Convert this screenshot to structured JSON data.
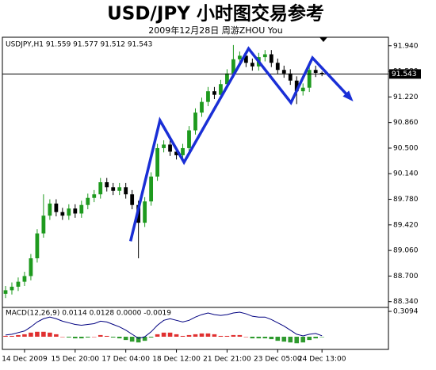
{
  "title": "USD/JPY 小时图交易参考",
  "subtitle": "2009年12月28日  周游ZHOU You",
  "chart_data": [
    {
      "type": "candlestick",
      "label": "USDJPY,H1  91.559 91.577 91.512 91.543",
      "categories": [
        null,
        null,
        null,
        "14 Dec 2009",
        null,
        null,
        null,
        null,
        null,
        null,
        null,
        "15 Dec 20:00",
        null,
        null,
        null,
        null,
        null,
        null,
        null,
        "17 Dec 04:00",
        null,
        null,
        null,
        null,
        null,
        null,
        null,
        "18 Dec 12:00",
        null,
        null,
        null,
        null,
        null,
        null,
        null,
        "21 Dec 21:00",
        null,
        null,
        null,
        null,
        null,
        null,
        null,
        "23 Dec 05:00",
        null,
        null,
        null,
        null,
        null,
        null,
        "24 Dec 13:00"
      ],
      "open": [
        88.45,
        88.5,
        88.55,
        88.62,
        88.7,
        88.95,
        89.3,
        89.55,
        89.72,
        89.6,
        89.55,
        89.65,
        89.58,
        89.7,
        89.8,
        89.85,
        90.02,
        89.95,
        89.9,
        89.95,
        89.85,
        89.7,
        89.45,
        89.75,
        90.1,
        90.5,
        90.55,
        90.45,
        90.4,
        90.5,
        90.75,
        91.0,
        91.15,
        91.3,
        91.25,
        91.4,
        91.55,
        91.75,
        91.8,
        91.7,
        91.65,
        91.78,
        91.82,
        91.7,
        91.6,
        91.55,
        91.45,
        91.3,
        91.35,
        91.6,
        91.559
      ],
      "high": [
        88.56,
        88.61,
        88.68,
        88.76,
        89.01,
        89.36,
        89.85,
        89.78,
        89.78,
        89.66,
        89.71,
        89.71,
        89.76,
        89.86,
        89.91,
        90.08,
        90.08,
        90.01,
        90.01,
        90.01,
        89.91,
        89.76,
        89.81,
        90.16,
        90.56,
        90.61,
        90.61,
        90.51,
        90.56,
        90.81,
        91.06,
        91.21,
        91.36,
        91.36,
        91.46,
        91.61,
        91.95,
        91.86,
        91.86,
        91.76,
        91.84,
        91.88,
        91.88,
        91.76,
        91.66,
        91.61,
        91.51,
        91.41,
        91.66,
        91.66,
        91.577
      ],
      "low": [
        88.39,
        88.44,
        88.49,
        88.56,
        88.64,
        88.89,
        89.24,
        89.49,
        89.54,
        89.49,
        89.49,
        89.52,
        89.52,
        89.64,
        89.74,
        89.79,
        89.89,
        89.84,
        89.84,
        89.79,
        89.64,
        88.95,
        89.39,
        89.69,
        90.04,
        90.44,
        90.39,
        90.34,
        90.34,
        90.44,
        90.69,
        90.94,
        91.09,
        91.19,
        91.19,
        91.34,
        91.49,
        91.69,
        91.64,
        91.59,
        91.59,
        91.72,
        91.64,
        91.54,
        91.49,
        91.39,
        91.12,
        91.24,
        91.29,
        91.5,
        91.512
      ],
      "close": [
        88.5,
        88.55,
        88.62,
        88.7,
        88.95,
        89.3,
        89.55,
        89.72,
        89.6,
        89.55,
        89.65,
        89.58,
        89.7,
        89.8,
        89.85,
        90.02,
        89.95,
        89.9,
        89.95,
        89.85,
        89.7,
        89.45,
        89.75,
        90.1,
        90.5,
        90.55,
        90.45,
        90.4,
        90.5,
        90.75,
        91.0,
        91.15,
        91.3,
        91.25,
        91.4,
        91.55,
        91.75,
        91.8,
        91.7,
        91.65,
        91.78,
        91.82,
        91.7,
        91.6,
        91.55,
        91.45,
        91.3,
        91.35,
        91.6,
        91.559,
        91.543
      ],
      "up_color": "#1e9a1e",
      "down_color": "#000000",
      "ylim": [
        88.27,
        92.06
      ],
      "yticks": [
        {
          "value": 91.94,
          "label": "91.940"
        },
        {
          "value": 91.58,
          "label": "91.580"
        },
        {
          "value": 91.22,
          "label": "91.220"
        },
        {
          "value": 90.86,
          "label": "90.860"
        },
        {
          "value": 90.5,
          "label": "90.500"
        },
        {
          "value": 90.14,
          "label": "90.140"
        },
        {
          "value": 89.78,
          "label": "89.780"
        },
        {
          "value": 89.42,
          "label": "89.420"
        },
        {
          "value": 89.06,
          "label": "89.060"
        },
        {
          "value": 88.7,
          "label": "88.700"
        },
        {
          "value": 88.34,
          "label": "88.340"
        }
      ],
      "last_price": 91.543,
      "annotation_line": {
        "color": "#1a2fd6",
        "x": [
          19.75,
          24.4,
          28.2,
          38.4,
          45.1,
          48.5,
          54.6
        ],
        "values": [
          89.19,
          90.89,
          90.3,
          91.9,
          91.14,
          91.77,
          91.19
        ]
      }
    },
    {
      "type": "macd",
      "label": "MACD(12,26,9) 0.0114 0.0128 0.0000 -0.0019",
      "main": [
        0.02,
        0.03,
        0.05,
        0.07,
        0.12,
        0.18,
        0.22,
        0.24,
        0.22,
        0.19,
        0.17,
        0.15,
        0.14,
        0.15,
        0.16,
        0.19,
        0.18,
        0.15,
        0.12,
        0.08,
        0.03,
        -0.02,
        0.0,
        0.06,
        0.14,
        0.2,
        0.22,
        0.2,
        0.18,
        0.2,
        0.24,
        0.27,
        0.29,
        0.27,
        0.26,
        0.27,
        0.29,
        0.3,
        0.28,
        0.25,
        0.24,
        0.24,
        0.21,
        0.17,
        0.13,
        0.08,
        0.03,
        0.01,
        0.03,
        0.04,
        0.0114
      ],
      "histogram": [
        0.01,
        0.01,
        0.02,
        0.03,
        0.05,
        0.06,
        0.06,
        0.05,
        0.03,
        0.0,
        -0.01,
        -0.02,
        -0.02,
        -0.01,
        0.0,
        0.02,
        0.01,
        -0.01,
        -0.02,
        -0.04,
        -0.06,
        -0.07,
        -0.05,
        -0.01,
        0.03,
        0.05,
        0.05,
        0.03,
        0.01,
        0.02,
        0.03,
        0.04,
        0.04,
        0.03,
        0.01,
        0.01,
        0.02,
        0.02,
        0.0,
        -0.02,
        -0.02,
        -0.02,
        -0.03,
        -0.05,
        -0.06,
        -0.07,
        -0.08,
        -0.07,
        -0.04,
        -0.02,
        -0.0019
      ],
      "line_color": "#000080",
      "positive_color": "#e03030",
      "negative_color": "#2e9a2e",
      "ylim": [
        -0.155,
        0.358
      ],
      "yticks": [
        0.3094
      ]
    }
  ]
}
